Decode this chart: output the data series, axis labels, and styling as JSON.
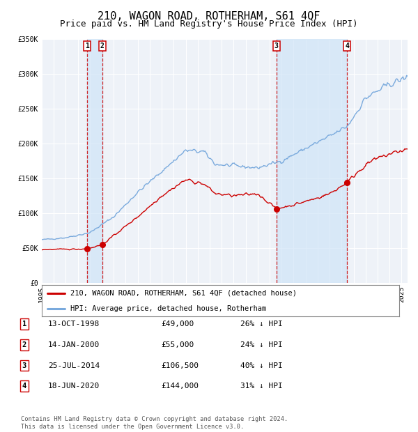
{
  "title": "210, WAGON ROAD, ROTHERHAM, S61 4QF",
  "subtitle": "Price paid vs. HM Land Registry's House Price Index (HPI)",
  "ylim": [
    0,
    350000
  ],
  "xlim_start": 1995.0,
  "xlim_end": 2025.5,
  "background_color": "#ffffff",
  "plot_bg_color": "#eef2f8",
  "grid_color": "#ffffff",
  "sale_dates": [
    1998.79,
    2000.04,
    2014.56,
    2020.46
  ],
  "sale_prices": [
    49000,
    55000,
    106500,
    144000
  ],
  "sale_labels": [
    "1",
    "2",
    "3",
    "4"
  ],
  "vline_color": "#cc0000",
  "vband_color": "#d0e4f7",
  "sale_marker_color": "#cc0000",
  "hpi_line_color": "#7aaadd",
  "price_line_color": "#cc0000",
  "legend_label_red": "210, WAGON ROAD, ROTHERHAM, S61 4QF (detached house)",
  "legend_label_blue": "HPI: Average price, detached house, Rotherham",
  "table_rows": [
    [
      "1",
      "13-OCT-1998",
      "£49,000",
      "26% ↓ HPI"
    ],
    [
      "2",
      "14-JAN-2000",
      "£55,000",
      "24% ↓ HPI"
    ],
    [
      "3",
      "25-JUL-2014",
      "£106,500",
      "40% ↓ HPI"
    ],
    [
      "4",
      "18-JUN-2020",
      "£144,000",
      "31% ↓ HPI"
    ]
  ],
  "footer": "Contains HM Land Registry data © Crown copyright and database right 2024.\nThis data is licensed under the Open Government Licence v3.0.",
  "title_fontsize": 11,
  "subtitle_fontsize": 9,
  "tick_fontsize": 7,
  "ytick_labels": [
    "£0",
    "£50K",
    "£100K",
    "£150K",
    "£200K",
    "£250K",
    "£300K",
    "£350K"
  ],
  "ytick_values": [
    0,
    50000,
    100000,
    150000,
    200000,
    250000,
    300000,
    350000
  ],
  "hpi_keypoints_year": [
    1995,
    1997,
    1999,
    2001,
    2003,
    2005,
    2007,
    2008.5,
    2009.5,
    2011,
    2013,
    2015,
    2017,
    2019,
    2020.5,
    2022,
    2024,
    2025.5
  ],
  "hpi_keypoints_val": [
    62000,
    65000,
    72000,
    95000,
    130000,
    160000,
    190000,
    188000,
    170000,
    168000,
    165000,
    175000,
    193000,
    210000,
    225000,
    265000,
    285000,
    295000
  ],
  "red_keypoints_year": [
    1995,
    1998.0,
    1998.79,
    2000.04,
    2001,
    2003,
    2005,
    2007,
    2008.5,
    2009.5,
    2011,
    2013,
    2014.56,
    2016,
    2018,
    2019,
    2020.46,
    2021.5,
    2022.5,
    2024,
    2025.5
  ],
  "red_keypoints_val": [
    48000,
    48500,
    49000,
    55000,
    68000,
    95000,
    125000,
    148000,
    142000,
    128000,
    125000,
    128000,
    106500,
    112000,
    122000,
    128000,
    144000,
    162000,
    175000,
    185000,
    192000
  ]
}
